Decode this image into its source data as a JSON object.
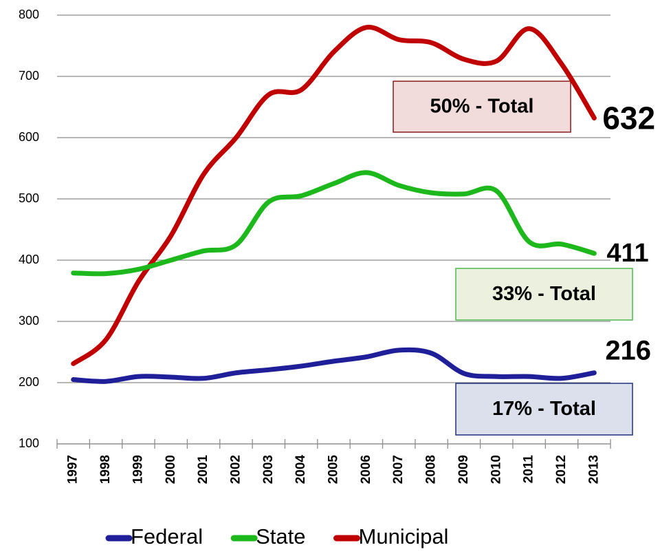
{
  "chart_data": {
    "type": "line",
    "categories": [
      "1997",
      "1998",
      "1999",
      "2000",
      "2001",
      "2002",
      "2003",
      "2004",
      "2005",
      "2006",
      "2007",
      "2008",
      "2009",
      "2010",
      "2011",
      "2012",
      "2013"
    ],
    "series": [
      {
        "name": "Municipal",
        "color": "#c00000",
        "values": [
          231,
          270,
          365,
          440,
          540,
          600,
          670,
          678,
          740,
          780,
          760,
          755,
          728,
          725,
          778,
          720,
          632
        ]
      },
      {
        "name": "State",
        "color": "#1cb81c",
        "values": [
          379,
          378,
          385,
          400,
          415,
          425,
          495,
          505,
          525,
          543,
          522,
          510,
          508,
          513,
          430,
          426,
          411
        ]
      },
      {
        "name": "Federal",
        "color": "#1f1f9a",
        "values": [
          205,
          202,
          210,
          209,
          207,
          216,
          221,
          227,
          235,
          242,
          253,
          248,
          215,
          210,
          210,
          207,
          216
        ]
      }
    ],
    "annotations": [
      "50% - Total",
      "33% - Total",
      "17% - Total"
    ],
    "legend_order": [
      "Federal",
      "State",
      "Municipal"
    ],
    "ylim": [
      100,
      800
    ],
    "yticks": [
      100,
      200,
      300,
      400,
      500,
      600,
      700,
      800
    ],
    "grid": true
  }
}
